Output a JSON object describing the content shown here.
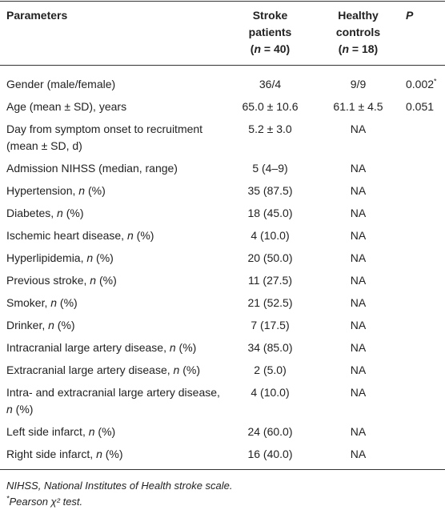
{
  "table": {
    "header": [
      [
        "Parameters"
      ],
      [
        "Stroke",
        "patients",
        "(n = 40)"
      ],
      [
        "Healthy",
        "controls",
        "(n = 18)"
      ],
      [
        "P"
      ]
    ],
    "rows": [
      [
        "Gender (male/female)",
        "36/4",
        "9/9",
        "0.002*"
      ],
      [
        "Age (mean ± SD), years",
        "65.0 ± 10.6",
        "61.1 ± 4.5",
        "0.051"
      ],
      [
        "Day from symptom onset to recruitment (mean ± SD, d)",
        "5.2 ± 3.0",
        "NA",
        ""
      ],
      [
        "Admission NIHSS (median, range)",
        "5 (4–9)",
        "NA",
        ""
      ],
      [
        "Hypertension, n (%)",
        "35 (87.5)",
        "NA",
        ""
      ],
      [
        "Diabetes, n (%)",
        "18 (45.0)",
        "NA",
        ""
      ],
      [
        "Ischemic heart disease, n (%)",
        "4 (10.0)",
        "NA",
        ""
      ],
      [
        "Hyperlipidemia, n (%)",
        "20 (50.0)",
        "NA",
        ""
      ],
      [
        "Previous stroke, n (%)",
        "11 (27.5)",
        "NA",
        ""
      ],
      [
        "Smoker, n (%)",
        "21 (52.5)",
        "NA",
        ""
      ],
      [
        "Drinker, n (%)",
        "7 (17.5)",
        "NA",
        ""
      ],
      [
        "Intracranial large artery disease, n (%)",
        "34 (85.0)",
        "NA",
        ""
      ],
      [
        "Extracranial large artery disease, n (%)",
        "2 (5.0)",
        "NA",
        ""
      ],
      [
        "Intra- and extracranial large artery disease, n (%)",
        "4 (10.0)",
        "NA",
        ""
      ],
      [
        "Left side infarct, n (%)",
        "24 (60.0)",
        "NA",
        ""
      ],
      [
        "Right side infarct, n (%)",
        "16 (40.0)",
        "NA",
        ""
      ]
    ]
  },
  "footnotes": [
    "NIHSS, National Institutes of Health stroke scale.",
    "*Pearson χ² test."
  ]
}
